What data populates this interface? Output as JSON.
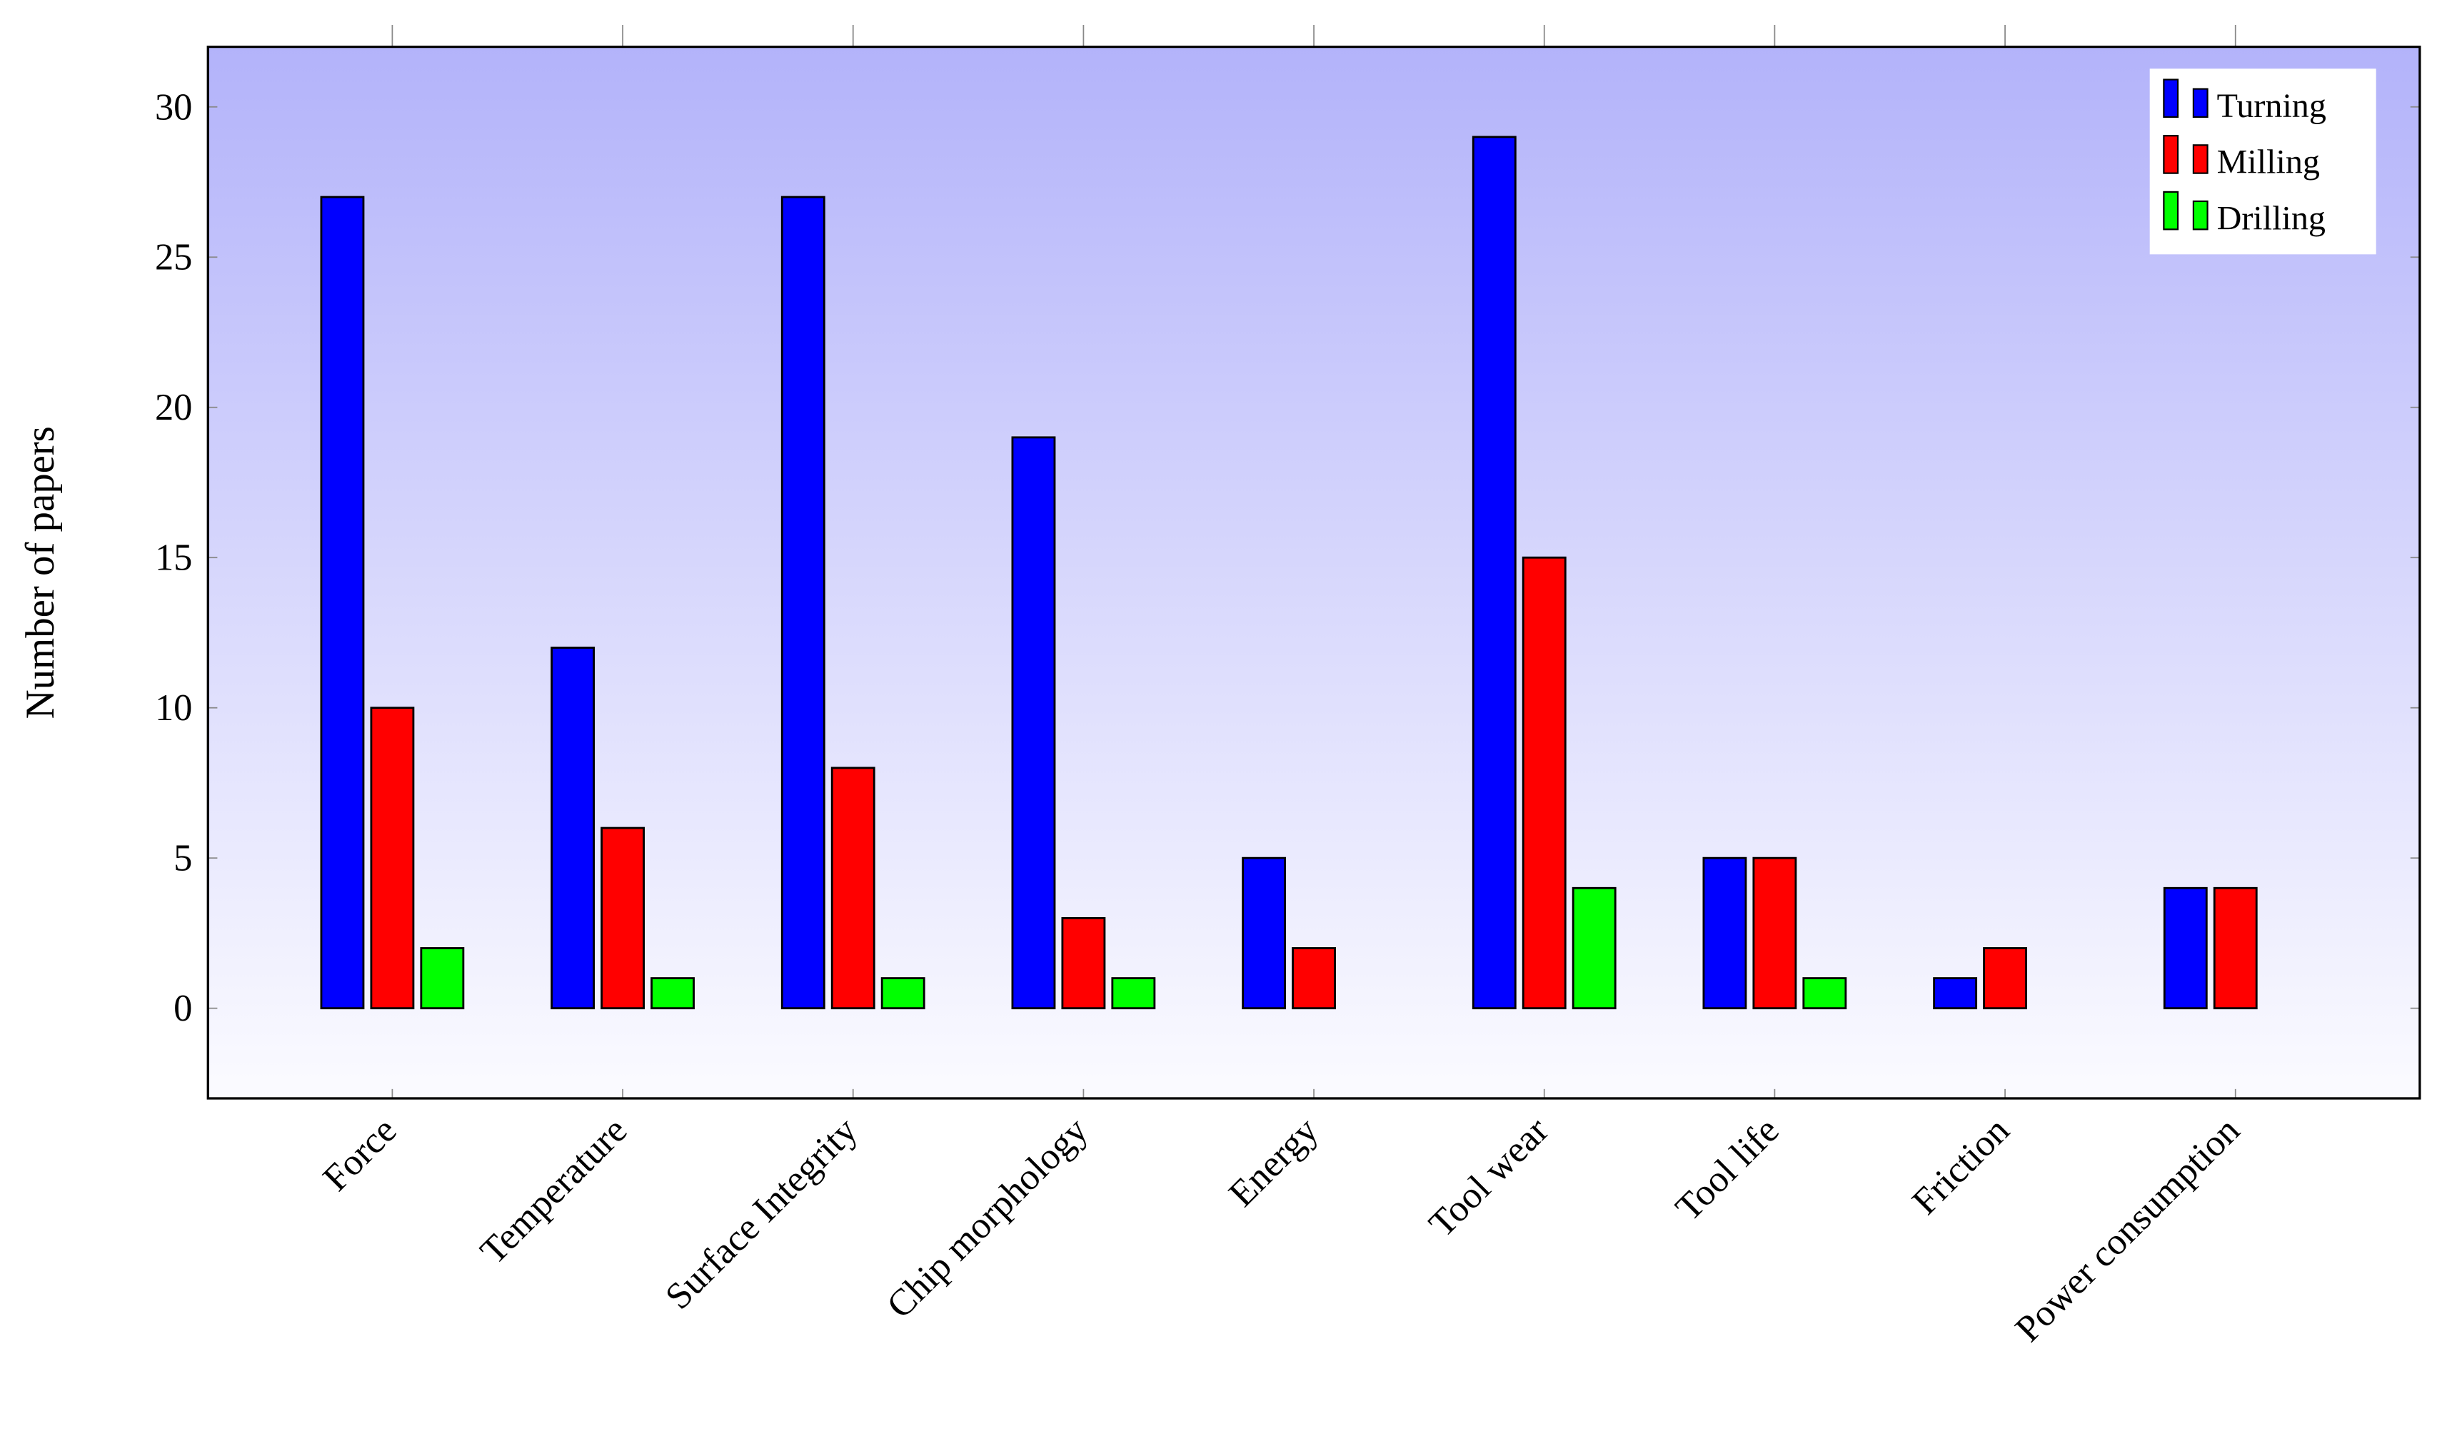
{
  "chart_data": {
    "type": "bar",
    "y_label": "Number of papers",
    "categories": [
      "Force",
      "Temperature",
      "Surface Integrity",
      "Chip morphology",
      "Energy",
      "Tool wear",
      "Tool life",
      "Friction",
      "Power consumption"
    ],
    "series": [
      {
        "name": "Turning",
        "color": "#0000ff",
        "values": [
          27,
          12,
          27,
          19,
          5,
          29,
          5,
          1,
          4
        ]
      },
      {
        "name": "Milling",
        "color": "#ff0000",
        "values": [
          10,
          6,
          8,
          3,
          2,
          15,
          5,
          2,
          4
        ]
      },
      {
        "name": "Drilling",
        "color": "#00ff00",
        "values": [
          2,
          1,
          1,
          1,
          0,
          4,
          1,
          0,
          0
        ]
      }
    ],
    "ylim": [
      -3,
      32
    ],
    "yticks": [
      0,
      5,
      10,
      15,
      20,
      25,
      30
    ],
    "legend": "upper right"
  }
}
